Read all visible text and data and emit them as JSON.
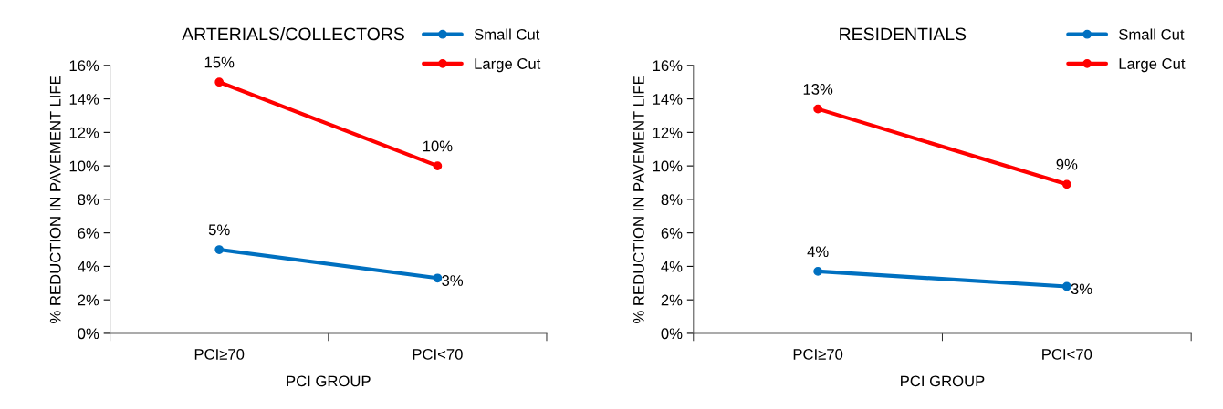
{
  "chart_data": [
    {
      "type": "line",
      "title": "ARTERIALS/COLLECTORS",
      "xlabel": "PCI GROUP",
      "ylabel": "% REDUCTION IN PAVEMENT LIFE",
      "categories": [
        "PCI≥70",
        "PCI<70"
      ],
      "series": [
        {
          "name": "Small Cut",
          "color": "#0070c0",
          "values": [
            5,
            3.3
          ],
          "value_labels": [
            "5%",
            "3%"
          ]
        },
        {
          "name": "Large Cut",
          "color": "#ff0000",
          "values": [
            15,
            10
          ],
          "value_labels": [
            "15%",
            "10%"
          ]
        }
      ],
      "ylim": [
        0,
        16
      ],
      "yticks": [
        {
          "value": 0,
          "label": "0%"
        },
        {
          "value": 2,
          "label": "2%"
        },
        {
          "value": 4,
          "label": "4%"
        },
        {
          "value": 6,
          "label": "6%"
        },
        {
          "value": 8,
          "label": "8%"
        },
        {
          "value": 10,
          "label": "10%"
        },
        {
          "value": 12,
          "label": "12%"
        },
        {
          "value": 14,
          "label": "14%"
        },
        {
          "value": 16,
          "label": "16%"
        }
      ],
      "grid": false,
      "legend": "top right",
      "marker": "circle",
      "line_style": "solid"
    },
    {
      "type": "line",
      "title": "RESIDENTIALS",
      "xlabel": "PCI GROUP",
      "ylabel": "% REDUCTION IN PAVEMENT LIFE",
      "categories": [
        "PCI≥70",
        "PCI<70"
      ],
      "series": [
        {
          "name": "Small Cut",
          "color": "#0070c0",
          "values": [
            3.7,
            2.8
          ],
          "value_labels": [
            "4%",
            "3%"
          ]
        },
        {
          "name": "Large Cut",
          "color": "#ff0000",
          "values": [
            13.4,
            8.9
          ],
          "value_labels": [
            "13%",
            "9%"
          ]
        }
      ],
      "ylim": [
        0,
        16
      ],
      "yticks": [
        {
          "value": 0,
          "label": "0%"
        },
        {
          "value": 2,
          "label": "2%"
        },
        {
          "value": 4,
          "label": "4%"
        },
        {
          "value": 6,
          "label": "6%"
        },
        {
          "value": 8,
          "label": "8%"
        },
        {
          "value": 10,
          "label": "10%"
        },
        {
          "value": 12,
          "label": "12%"
        },
        {
          "value": 14,
          "label": "14%"
        },
        {
          "value": 16,
          "label": "16%"
        }
      ],
      "grid": false,
      "legend": "top right",
      "marker": "circle",
      "line_style": "solid"
    }
  ]
}
